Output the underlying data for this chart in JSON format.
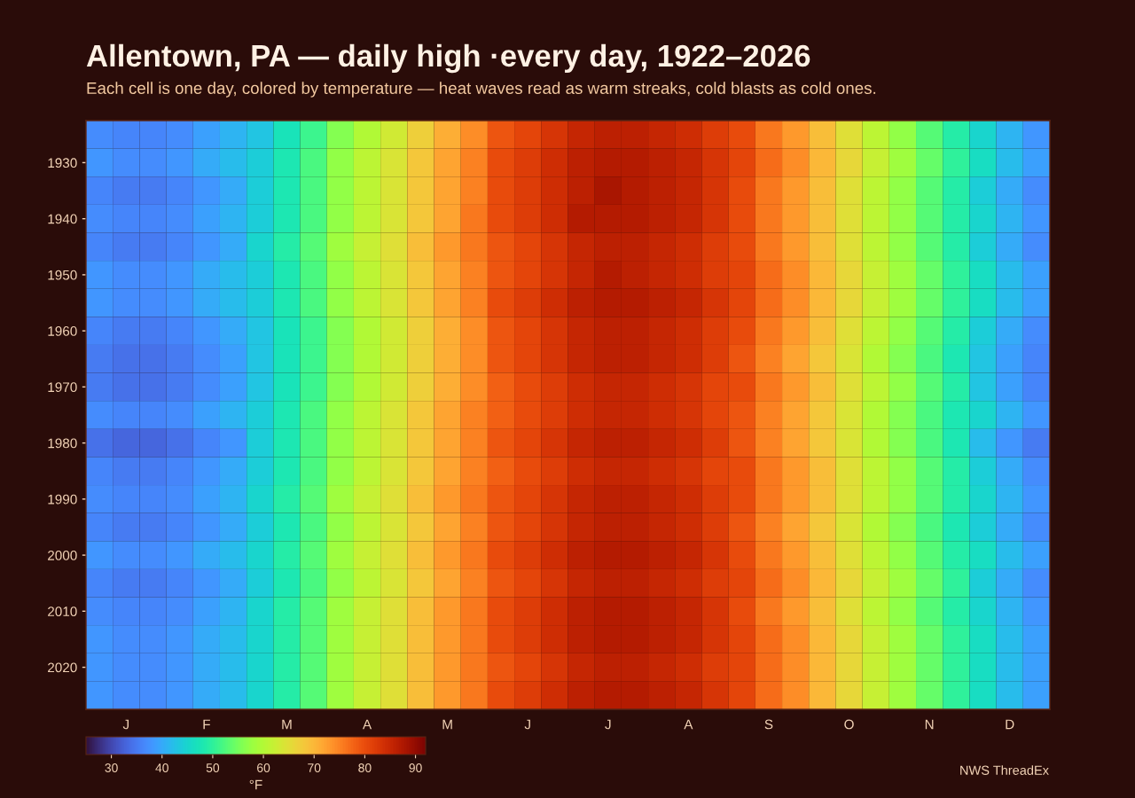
{
  "chart_data": {
    "type": "heatmap",
    "title": "Allentown, PA — daily high ·every day, 1922–2026",
    "subtitle": "Each cell is one day, colored by temperature — heat waves read as warm streaks, cold blasts as cold ones.",
    "categories": [
      null,
      "J",
      null,
      null,
      "F",
      null,
      null,
      "M",
      null,
      null,
      "A",
      null,
      null,
      "M",
      null,
      null,
      "J",
      null,
      null,
      "J",
      null,
      null,
      "A",
      null,
      null,
      "S",
      null,
      null,
      "O",
      null,
      null,
      "N",
      null,
      null,
      "D",
      null
    ],
    "y_categories": [
      null,
      "1930",
      null,
      "1940",
      null,
      "1950",
      null,
      "1960",
      null,
      "1970",
      null,
      "1980",
      null,
      "1990",
      null,
      "2000",
      null,
      "2010",
      null,
      "2020",
      null
    ],
    "cells": [
      [
        37,
        36,
        36,
        37,
        39,
        41,
        43,
        47,
        51,
        56,
        60,
        63,
        67,
        71,
        74,
        79,
        81,
        83,
        85,
        86,
        86,
        85,
        84,
        82,
        80,
        76,
        73,
        69,
        65,
        61,
        57,
        53,
        49,
        45,
        41,
        38
      ],
      [
        38,
        37,
        37,
        38,
        40,
        42,
        44,
        48,
        52,
        57,
        61,
        64,
        68,
        72,
        75,
        80,
        82,
        84,
        86,
        87,
        87,
        86,
        85,
        83,
        81,
        77,
        74,
        70,
        66,
        62,
        58,
        54,
        50,
        46,
        42,
        39
      ],
      [
        36,
        35,
        35,
        36,
        38,
        40,
        44,
        48,
        52,
        57,
        61,
        64,
        68,
        72,
        75,
        80,
        82,
        84,
        86,
        88,
        87,
        86,
        85,
        83,
        80,
        76,
        73,
        69,
        65,
        61,
        57,
        53,
        49,
        44,
        40,
        37
      ],
      [
        37,
        36,
        36,
        37,
        39,
        41,
        44,
        48,
        52,
        57,
        61,
        64,
        68,
        72,
        76,
        80,
        82,
        84,
        87,
        87,
        87,
        86,
        85,
        83,
        80,
        76,
        73,
        69,
        65,
        61,
        57,
        53,
        49,
        45,
        41,
        38
      ],
      [
        36,
        35,
        35,
        36,
        38,
        40,
        45,
        49,
        53,
        58,
        62,
        65,
        69,
        73,
        76,
        79,
        81,
        83,
        85,
        86,
        86,
        85,
        84,
        82,
        80,
        76,
        73,
        69,
        65,
        61,
        57,
        53,
        49,
        44,
        40,
        37
      ],
      [
        38,
        37,
        37,
        38,
        40,
        42,
        44,
        48,
        52,
        57,
        61,
        64,
        68,
        72,
        75,
        79,
        81,
        83,
        85,
        87,
        86,
        85,
        84,
        82,
        81,
        77,
        74,
        70,
        66,
        62,
        58,
        54,
        50,
        46,
        42,
        39
      ],
      [
        38,
        37,
        37,
        38,
        40,
        42,
        44,
        48,
        52,
        57,
        61,
        64,
        68,
        72,
        75,
        80,
        82,
        84,
        86,
        87,
        87,
        86,
        85,
        83,
        81,
        77,
        74,
        70,
        66,
        62,
        58,
        54,
        50,
        46,
        42,
        39
      ],
      [
        36,
        35,
        35,
        36,
        38,
        40,
        43,
        47,
        51,
        56,
        60,
        63,
        67,
        71,
        74,
        79,
        81,
        83,
        85,
        86,
        86,
        85,
        84,
        82,
        80,
        76,
        73,
        69,
        65,
        61,
        57,
        53,
        49,
        44,
        40,
        37
      ],
      [
        35,
        34,
        34,
        35,
        37,
        39,
        43,
        47,
        51,
        56,
        60,
        63,
        67,
        71,
        74,
        79,
        81,
        83,
        85,
        86,
        86,
        85,
        84,
        82,
        79,
        75,
        72,
        68,
        64,
        60,
        56,
        52,
        48,
        43,
        39,
        36
      ],
      [
        35,
        34,
        34,
        35,
        37,
        39,
        43,
        47,
        51,
        56,
        60,
        63,
        67,
        71,
        74,
        78,
        80,
        82,
        84,
        85,
        85,
        84,
        83,
        81,
        80,
        76,
        73,
        69,
        65,
        61,
        57,
        53,
        49,
        43,
        39,
        36
      ],
      [
        37,
        36,
        36,
        37,
        39,
        41,
        44,
        48,
        52,
        57,
        61,
        64,
        68,
        72,
        75,
        78,
        80,
        82,
        84,
        85,
        85,
        84,
        83,
        81,
        79,
        75,
        72,
        68,
        64,
        60,
        56,
        52,
        48,
        45,
        41,
        38
      ],
      [
        34,
        33,
        33,
        34,
        36,
        38,
        44,
        48,
        52,
        57,
        61,
        64,
        68,
        72,
        75,
        79,
        81,
        83,
        85,
        86,
        86,
        85,
        84,
        82,
        79,
        75,
        72,
        68,
        64,
        60,
        56,
        52,
        48,
        42,
        38,
        35
      ],
      [
        36,
        35,
        35,
        36,
        38,
        40,
        44,
        48,
        52,
        57,
        61,
        64,
        68,
        72,
        75,
        78,
        80,
        82,
        84,
        85,
        85,
        84,
        83,
        81,
        80,
        76,
        73,
        69,
        65,
        61,
        57,
        53,
        49,
        44,
        40,
        37
      ],
      [
        37,
        36,
        36,
        37,
        39,
        41,
        45,
        49,
        53,
        58,
        62,
        65,
        69,
        73,
        76,
        79,
        81,
        83,
        85,
        86,
        86,
        85,
        84,
        82,
        80,
        76,
        73,
        69,
        65,
        61,
        57,
        53,
        49,
        45,
        41,
        38
      ],
      [
        36,
        35,
        35,
        36,
        38,
        40,
        44,
        48,
        52,
        57,
        61,
        64,
        68,
        72,
        75,
        79,
        81,
        83,
        85,
        86,
        86,
        85,
        84,
        82,
        79,
        75,
        72,
        68,
        64,
        60,
        56,
        52,
        48,
        44,
        40,
        37
      ],
      [
        38,
        37,
        37,
        38,
        40,
        42,
        45,
        49,
        53,
        58,
        62,
        65,
        69,
        73,
        76,
        80,
        82,
        84,
        86,
        87,
        87,
        86,
        85,
        83,
        80,
        76,
        73,
        69,
        65,
        61,
        57,
        53,
        49,
        46,
        42,
        39
      ],
      [
        36,
        35,
        35,
        36,
        38,
        40,
        44,
        48,
        52,
        57,
        61,
        64,
        68,
        72,
        75,
        79,
        81,
        83,
        85,
        86,
        86,
        85,
        84,
        82,
        81,
        77,
        74,
        70,
        66,
        62,
        58,
        54,
        50,
        44,
        40,
        37
      ],
      [
        37,
        36,
        36,
        37,
        39,
        41,
        45,
        49,
        53,
        58,
        62,
        65,
        69,
        73,
        76,
        80,
        82,
        84,
        86,
        87,
        87,
        86,
        85,
        83,
        80,
        76,
        73,
        69,
        65,
        61,
        57,
        53,
        49,
        45,
        41,
        38
      ],
      [
        38,
        37,
        37,
        38,
        40,
        42,
        45,
        49,
        53,
        58,
        62,
        65,
        69,
        73,
        76,
        80,
        82,
        84,
        86,
        87,
        87,
        86,
        85,
        83,
        81,
        77,
        74,
        70,
        66,
        62,
        58,
        54,
        50,
        46,
        42,
        39
      ],
      [
        38,
        37,
        37,
        38,
        40,
        42,
        45,
        49,
        53,
        58,
        62,
        65,
        69,
        73,
        76,
        79,
        81,
        83,
        85,
        86,
        86,
        85,
        84,
        82,
        81,
        77,
        74,
        70,
        66,
        62,
        58,
        54,
        50,
        46,
        42,
        39
      ],
      [
        38,
        37,
        37,
        38,
        40,
        42,
        45,
        49,
        53,
        58,
        62,
        65,
        69,
        73,
        76,
        80,
        82,
        84,
        86,
        87,
        87,
        86,
        85,
        83,
        81,
        77,
        74,
        70,
        66,
        62,
        58,
        54,
        50,
        46,
        42,
        39
      ]
    ],
    "clim": [
      25,
      92
    ],
    "cticks": [
      30,
      40,
      50,
      60,
      70,
      80,
      90
    ],
    "clabel": "°F",
    "annotations": [
      "NWS ThreadEx"
    ]
  }
}
